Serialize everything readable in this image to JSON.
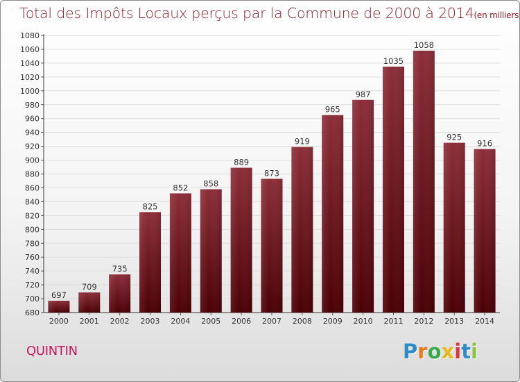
{
  "chart_data": {
    "type": "bar",
    "title": "Total des Impôts Locaux perçus par la Commune de 2000 à 2014",
    "unit_label": "(en milliers d'€)",
    "xlabel": "",
    "ylabel": "",
    "categories": [
      "2000",
      "2001",
      "2002",
      "2003",
      "2004",
      "2005",
      "2006",
      "2007",
      "2008",
      "2009",
      "2010",
      "2011",
      "2012",
      "2013",
      "2014"
    ],
    "values": [
      697,
      709,
      735,
      825,
      852,
      858,
      889,
      873,
      919,
      965,
      987,
      1035,
      1058,
      925,
      916
    ],
    "value_labels": [
      "697",
      "709",
      "735",
      "825",
      "852",
      "858",
      "889",
      "873",
      "919",
      "965",
      "987",
      "1035",
      "1058",
      "925",
      "916"
    ],
    "ylim": [
      680,
      1080
    ],
    "yticks": [
      680,
      700,
      720,
      740,
      760,
      780,
      800,
      820,
      840,
      860,
      880,
      900,
      920,
      940,
      960,
      980,
      1000,
      1020,
      1040,
      1060,
      1080
    ],
    "grid": true,
    "bar_color_top": "#8c2e38",
    "bar_color_bottom": "#4a0005"
  },
  "footer": {
    "commune": "QUINTIN",
    "logo_letters": [
      "P",
      "r",
      "o",
      "x",
      "i",
      "t",
      "i"
    ],
    "logo_colors": [
      "#2e8bc7",
      "#e87a1e",
      "#3aa84a",
      "#e8b81e",
      "#d8383a",
      "#2e8bc7",
      "#8bc53f"
    ]
  }
}
